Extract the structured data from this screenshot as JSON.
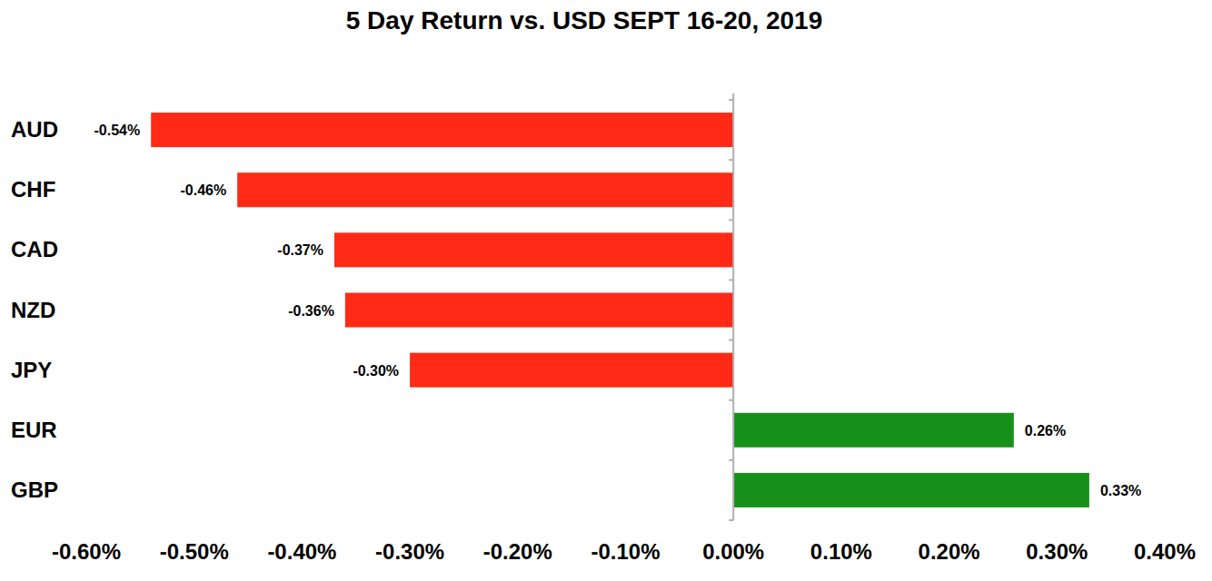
{
  "chart_data": {
    "type": "bar",
    "orientation": "horizontal",
    "title": "5 Day Return vs. USD SEPT 16-20, 2019",
    "categories": [
      "AUD",
      "CHF",
      "CAD",
      "NZD",
      "JPY",
      "EUR",
      "GBP"
    ],
    "values": [
      -0.54,
      -0.46,
      -0.37,
      -0.36,
      -0.3,
      0.26,
      0.33
    ],
    "value_labels": [
      "-0.54%",
      "-0.46%",
      "-0.37%",
      "-0.36%",
      "-0.30%",
      "0.26%",
      "0.33%"
    ],
    "colors": [
      "#ff2a16",
      "#ff2a16",
      "#ff2a16",
      "#ff2a16",
      "#ff2a16",
      "#17901a",
      "#17901a"
    ],
    "xlim": [
      -0.6,
      0.4
    ],
    "xticks": [
      {
        "value": -0.6,
        "label": "-0.60%"
      },
      {
        "value": -0.5,
        "label": "-0.50%"
      },
      {
        "value": -0.4,
        "label": "-0.40%"
      },
      {
        "value": -0.3,
        "label": "-0.30%"
      },
      {
        "value": -0.2,
        "label": "-0.20%"
      },
      {
        "value": -0.1,
        "label": "-0.10%"
      },
      {
        "value": 0,
        "label": "0.00%"
      },
      {
        "value": 0.1,
        "label": "0.10%"
      },
      {
        "value": 0.2,
        "label": "0.20%"
      },
      {
        "value": 0.3,
        "label": "0.30%"
      },
      {
        "value": 0.4,
        "label": "0.40%"
      }
    ],
    "data_labels": true,
    "grid": false
  }
}
